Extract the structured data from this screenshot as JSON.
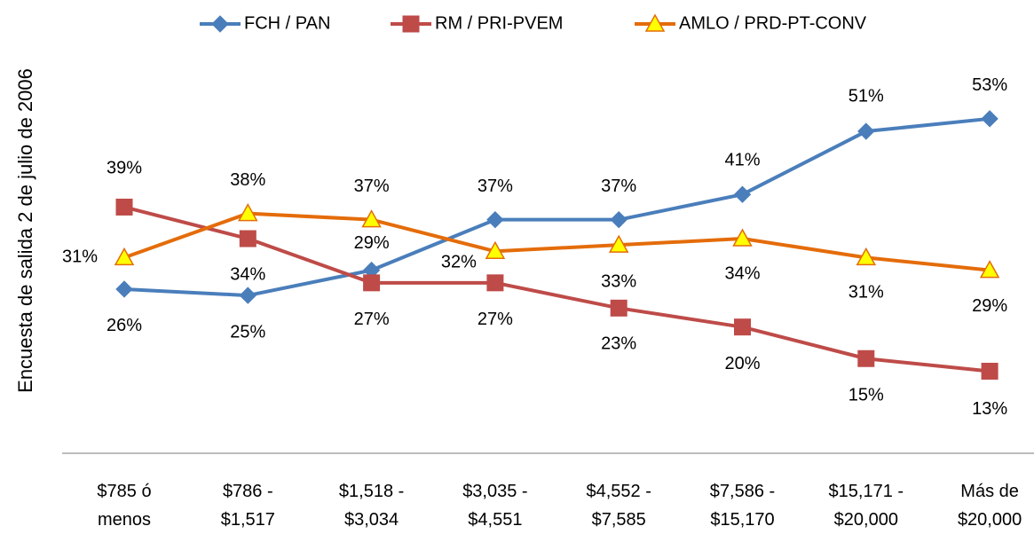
{
  "chart_data": {
    "type": "line",
    "y_label": "Encuesta de salida 2 de julio de 2006",
    "categories": [
      "$785 ó menos",
      "$786 - $1,517",
      "$1,518 - $3,034",
      "$3,035 - $4,551",
      "$4,552 - $7,585",
      "$7,586 - $15,170",
      "$15,171 - $20,000",
      "Más de $20,000"
    ],
    "ylim": [
      0,
      60
    ],
    "legend": "top",
    "series": [
      {
        "name": "FCH / PAN",
        "color": "#4a7ebb",
        "marker": "diamond",
        "values": [
          26,
          25,
          29,
          37,
          37,
          41,
          51,
          53
        ],
        "value_labels": [
          "26%",
          "25%",
          "29%",
          "37%",
          "37%",
          "41%",
          "51%",
          "53%"
        ]
      },
      {
        "name": "RM / PRI-PVEM",
        "color": "#be4b48",
        "marker": "square",
        "values": [
          39,
          34,
          27,
          27,
          23,
          20,
          15,
          13
        ],
        "value_labels": [
          "39%",
          "34%",
          "27%",
          "27%",
          "23%",
          "20%",
          "15%",
          "13%"
        ]
      },
      {
        "name": "AMLO / PRD-PT-CONV",
        "color": "#e46c0a",
        "marker": "triangle",
        "values": [
          31,
          38,
          37,
          32,
          33,
          34,
          31,
          29
        ],
        "value_labels": [
          "31%",
          "38%",
          "37%",
          "32%",
          "33%",
          "34%",
          "31%",
          "29%"
        ]
      }
    ]
  }
}
